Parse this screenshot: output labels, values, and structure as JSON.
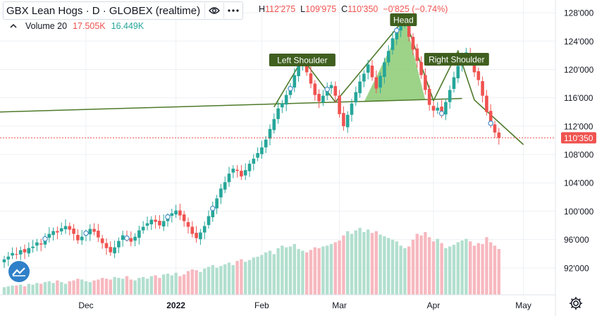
{
  "header": {
    "title": "GBX Lean Hogs · D · GLOBEX (realtime)",
    "ohlc": [
      {
        "label": "H",
        "value": "112'275"
      },
      {
        "label": "L",
        "value": "109'975"
      },
      {
        "label": "C",
        "value": "110'350"
      },
      {
        "label": "",
        "value": "−0'825 (−0.74%)"
      }
    ]
  },
  "volume": {
    "label": "Volume 20",
    "value": "17.505K",
    "ma": "16.449K"
  },
  "colors": {
    "up": "#26a69a",
    "down": "#ef5350",
    "pattern": "#4e7a2a",
    "fill": "#7cc462",
    "vol_up": "#b2dfcf",
    "vol_down": "#f7b8bf"
  },
  "icons": [
    "eye-icon",
    "more-icon",
    "chevron-up-icon",
    "tradingview-logo-icon",
    "gear-icon"
  ],
  "chart_data": {
    "type": "candlestick",
    "y_ticks": [
      "128'000",
      "124'000",
      "120'000",
      "116'000",
      "112'000",
      "108'000",
      "104'000",
      "100'000",
      "96'000",
      "92'000"
    ],
    "y_tick_values": [
      128,
      124,
      120,
      116,
      112,
      108,
      104,
      100,
      96,
      92
    ],
    "ylim": [
      88.2,
      129.4
    ],
    "x_ticks": [
      {
        "label": "Dec",
        "i": 20
      },
      {
        "label": "2022",
        "i": 42
      },
      {
        "label": "Feb",
        "i": 63
      },
      {
        "label": "Mar",
        "i": 82
      },
      {
        "label": "Apr",
        "i": 105
      },
      {
        "label": "May",
        "i": 127
      }
    ],
    "last_price": {
      "value": 110.35,
      "label": "110'350"
    },
    "closes": [
      93.2,
      93.6,
      94.1,
      93.9,
      94.5,
      94.2,
      94.8,
      95.0,
      95.6,
      95.3,
      96.1,
      96.8,
      97.2,
      97.0,
      97.6,
      97.9,
      97.4,
      96.8,
      95.9,
      96.4,
      96.9,
      97.5,
      97.1,
      96.3,
      95.5,
      94.8,
      94.2,
      94.9,
      95.8,
      96.6,
      96.2,
      95.7,
      96.4,
      97.3,
      97.8,
      98.3,
      98.8,
      98.5,
      98.0,
      98.6,
      99.2,
      99.7,
      100.1,
      99.4,
      98.6,
      97.8,
      96.8,
      96.2,
      97.0,
      97.9,
      99.3,
      100.4,
      101.8,
      103.2,
      104.1,
      105.3,
      106.0,
      105.7,
      104.9,
      105.8,
      106.7,
      107.4,
      108.2,
      109.0,
      110.1,
      111.6,
      113.0,
      114.5,
      115.2,
      116.4,
      117.3,
      119.2,
      120.8,
      121.2,
      119.6,
      118.0,
      116.4,
      115.5,
      116.3,
      117.2,
      117.8,
      116.3,
      113.7,
      112.0,
      113.6,
      115.2,
      116.8,
      118.3,
      119.4,
      120.7,
      118.9,
      117.3,
      119.1,
      121.0,
      122.6,
      124.4,
      125.5,
      126.2,
      127.0,
      124.6,
      122.8,
      121.2,
      119.2,
      117.1,
      115.0,
      114.2,
      114.6,
      113.8,
      115.4,
      117.1,
      118.9,
      120.5,
      121.9,
      122.4,
      121.1,
      119.6,
      118.5,
      116.3,
      114.0,
      112.4,
      111.1,
      110.35
    ],
    "volumes": [
      9,
      10,
      11,
      11,
      12,
      10,
      13,
      12,
      14,
      13,
      15,
      16,
      14,
      17,
      15,
      13,
      16,
      17,
      19,
      18,
      16,
      15,
      17,
      18,
      20,
      19,
      18,
      21,
      20,
      19,
      22,
      18,
      17,
      20,
      21,
      19,
      22,
      23,
      20,
      24,
      25,
      23,
      26,
      22,
      24,
      28,
      30,
      29,
      27,
      31,
      33,
      35,
      32,
      34,
      36,
      38,
      35,
      40,
      42,
      39,
      41,
      44,
      45,
      47,
      50,
      52,
      48,
      55,
      58,
      56,
      57,
      60,
      54,
      52,
      50,
      53,
      56,
      55,
      57,
      58,
      60,
      62,
      64,
      70,
      75,
      72,
      76,
      79,
      74,
      77,
      73,
      75,
      71,
      69,
      67,
      65,
      63,
      58,
      55,
      57,
      65,
      72,
      70,
      74,
      68,
      63,
      66,
      61,
      55,
      57,
      59,
      62,
      64,
      66,
      63,
      58,
      61,
      60,
      68,
      62,
      58,
      54
    ]
  },
  "annotations": {
    "left_shoulder": "Left Shoulder",
    "head": "Head",
    "right_shoulder": "Right Shoulder"
  }
}
